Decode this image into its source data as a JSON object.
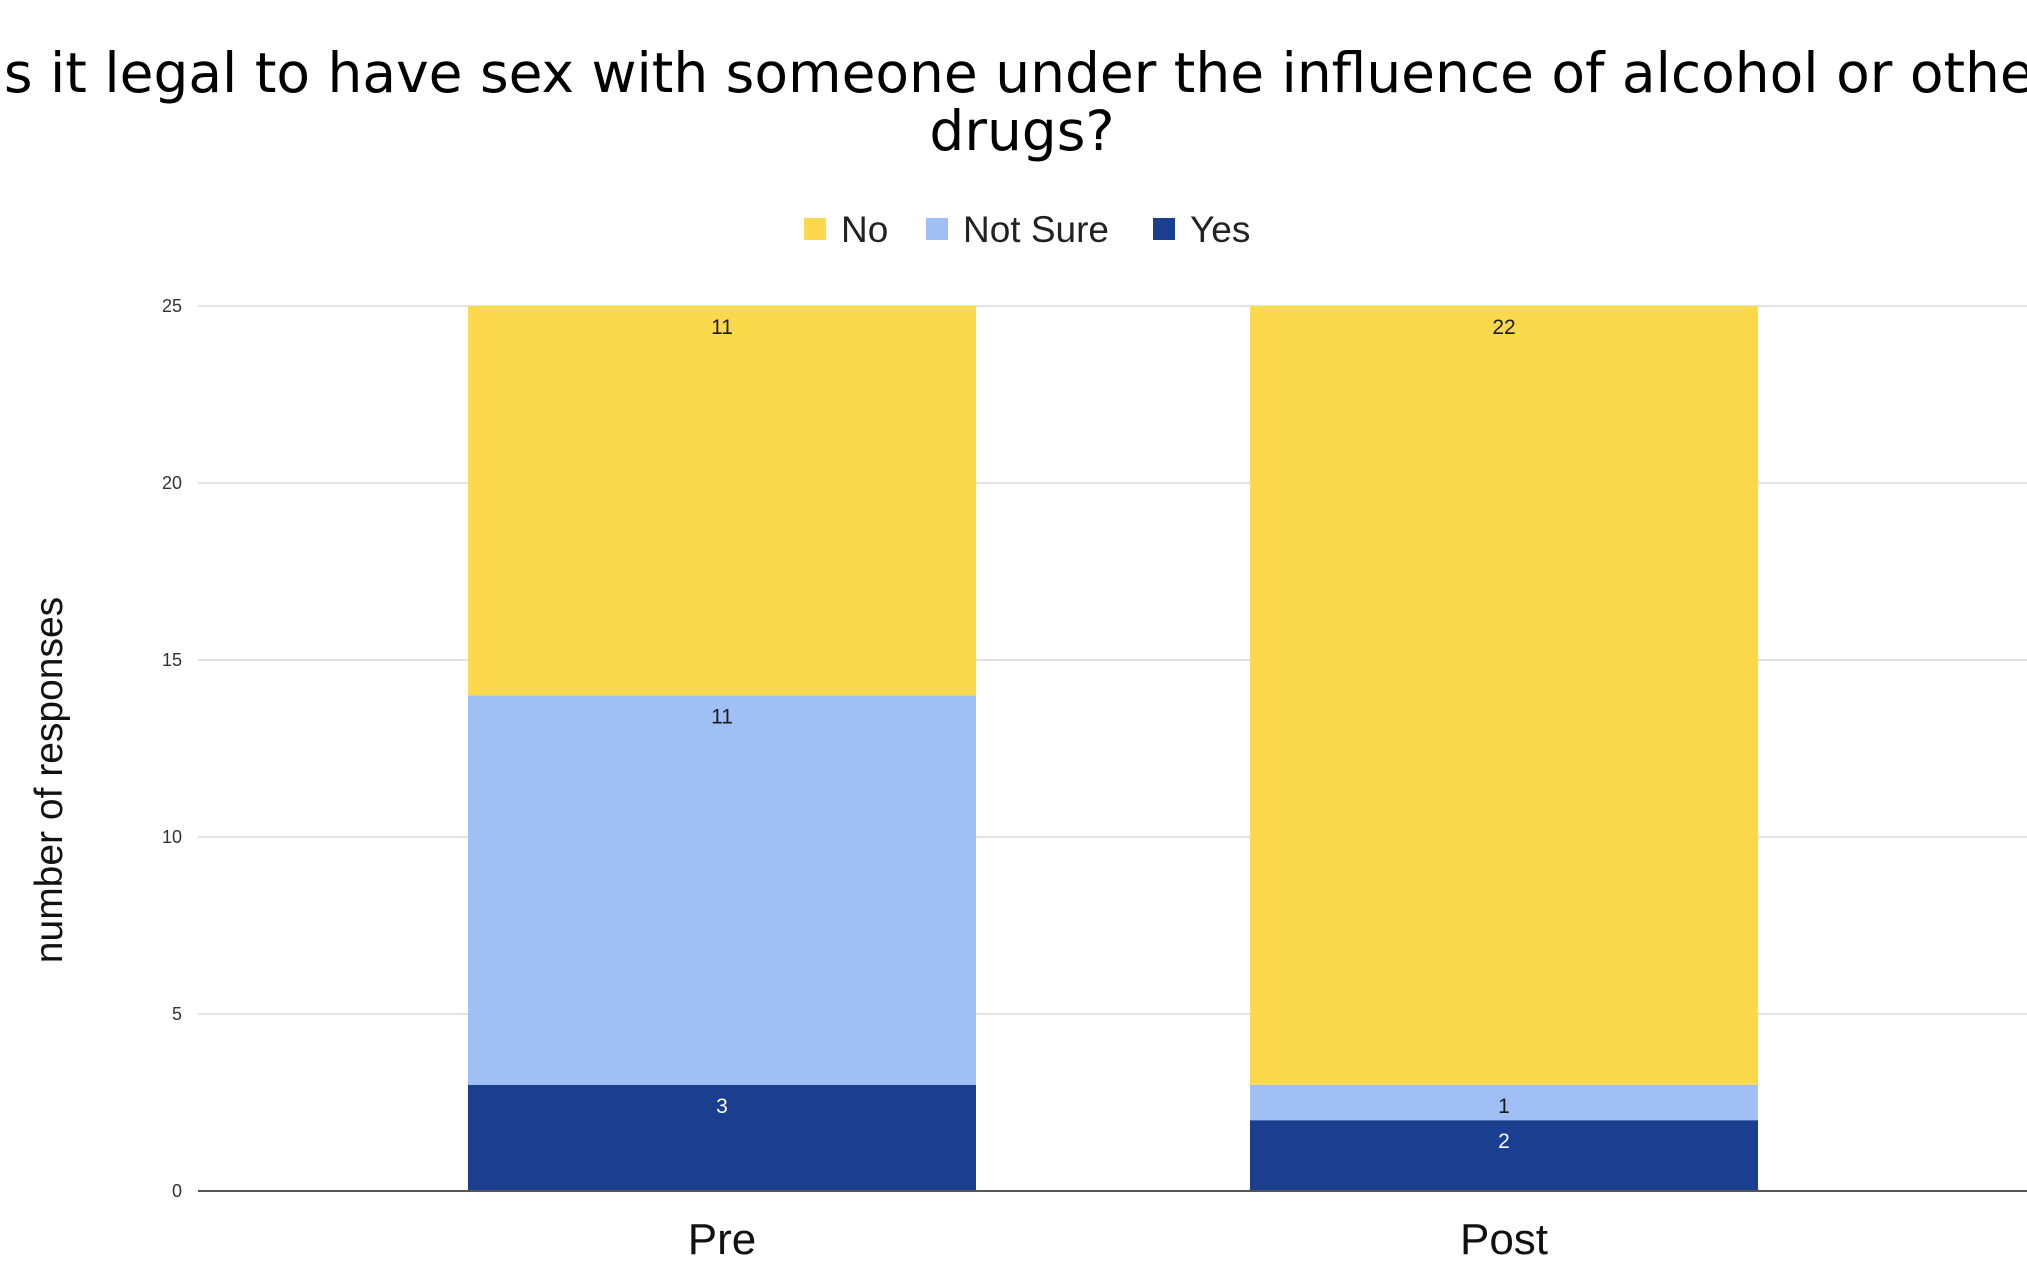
{
  "chart_data": {
    "type": "bar",
    "stacked": true,
    "title": "Is it legal to have sex with someone under the influence of alcohol or other drugs?",
    "xlabel": "",
    "ylabel": "number of responses",
    "categories": [
      "Pre",
      "Post"
    ],
    "series": [
      {
        "name": "Yes",
        "values": [
          3,
          2
        ],
        "color": "#1b3f8f",
        "label_color": "#ffffff"
      },
      {
        "name": "Not Sure",
        "values": [
          11,
          1
        ],
        "color": "#a0bff5",
        "label_color": "#1a1a1a"
      },
      {
        "name": "No",
        "values": [
          11,
          22
        ],
        "color": "#fcd94c",
        "label_color": "#1a1a1a"
      }
    ],
    "legend_order": [
      "No",
      "Not Sure",
      "Yes"
    ],
    "legend_position": "top",
    "ylim": [
      0,
      25
    ],
    "yticks": [
      0,
      5,
      10,
      15,
      20,
      25
    ],
    "grid": true
  }
}
